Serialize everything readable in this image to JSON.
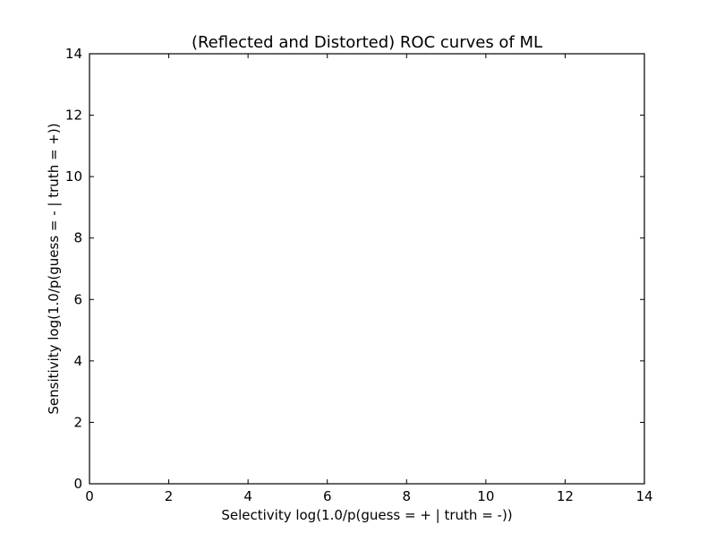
{
  "chart_data": {
    "type": "line",
    "title": "(Reflected and Distorted) ROC curves of ML",
    "xlabel": "Selectivity log(1.0/p(guess = + | truth = -))",
    "ylabel": "Sensitivity log(1.0/p(guess = - | truth = +))",
    "xlim": [
      0,
      14
    ],
    "ylim": [
      0,
      14
    ],
    "xticks": [
      "0",
      "2",
      "4",
      "6",
      "8",
      "10",
      "12",
      "14"
    ],
    "yticks": [
      "0",
      "2",
      "4",
      "6",
      "8",
      "10",
      "12",
      "14"
    ],
    "grid": false,
    "series": []
  }
}
